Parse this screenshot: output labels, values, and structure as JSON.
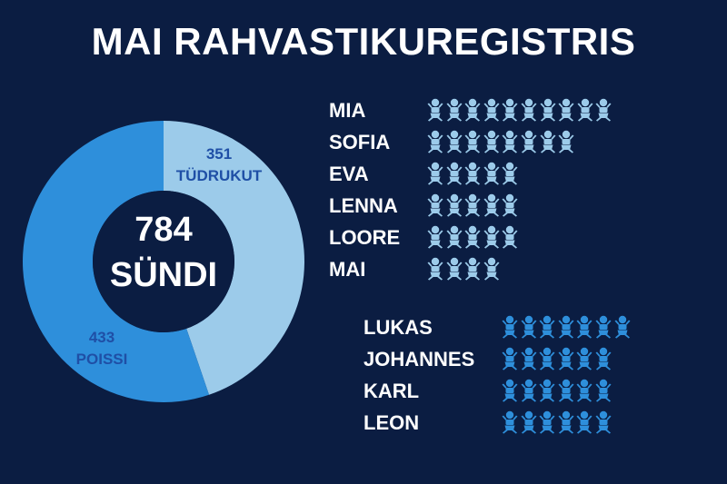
{
  "header": {
    "title": "MAI RAHVASTIKUREGISTRIS"
  },
  "colors": {
    "background": "#0b1d42",
    "girls": "#9ccbea",
    "boys": "#2e8fdb",
    "label": "#1f4fa6",
    "text": "#ffffff"
  },
  "summary": {
    "total_number": "784",
    "total_label": "SÜNDI",
    "girls_number": "351",
    "girls_label": "TÜDRUKUT",
    "boys_number": "433",
    "boys_label": "POISSI"
  },
  "chart_data": [
    {
      "type": "pie",
      "donut": true,
      "title": "",
      "categories": [
        "TÜDRUKUT",
        "POISSI"
      ],
      "values": [
        351,
        433
      ],
      "total": 784,
      "colors": [
        "#9ccbea",
        "#2e8fdb"
      ]
    },
    {
      "type": "bar",
      "orientation": "horizontal",
      "icon": "baby-icon",
      "group": "girls",
      "categories": [
        "MIA",
        "SOFIA",
        "EVA",
        "LENNA",
        "LOORE",
        "MAI"
      ],
      "values": [
        10,
        8,
        5,
        5,
        5,
        4
      ],
      "color": "#9ccbea"
    },
    {
      "type": "bar",
      "orientation": "horizontal",
      "icon": "baby-icon",
      "group": "boys",
      "categories": [
        "LUKAS",
        "JOHANNES",
        "KARL",
        "LEON"
      ],
      "values": [
        7,
        6,
        6,
        6
      ],
      "color": "#2e8fdb"
    }
  ]
}
